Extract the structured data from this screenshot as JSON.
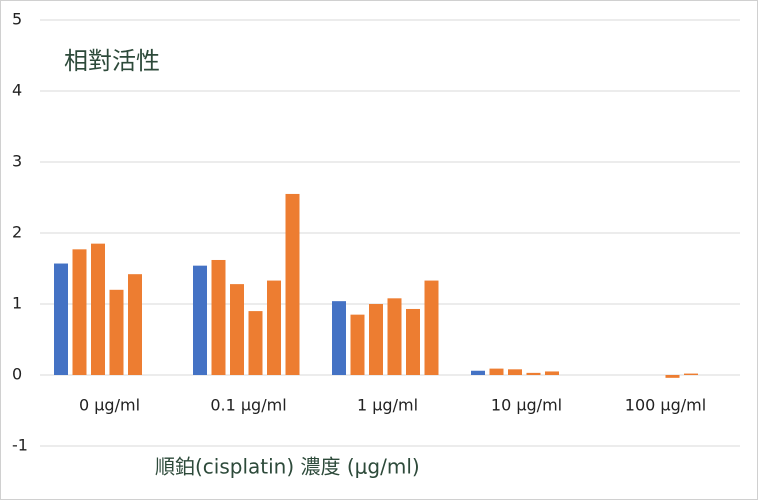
{
  "chart_data": {
    "type": "bar",
    "title": "相對活性",
    "x_label": "順鉑(cisplatin) 濃度 (μg/ml)",
    "categories": [
      "0 μg/ml",
      "0.1 μg/ml",
      "1 μg/ml",
      "10 μg/ml",
      "100 μg/ml"
    ],
    "series": [
      {
        "color": "#4472c4",
        "values": [
          1.57,
          1.54,
          1.04,
          0.06,
          null
        ]
      },
      {
        "color": "#ed7d31",
        "values": [
          1.77,
          1.62,
          0.85,
          0.09,
          null
        ]
      },
      {
        "color": "#ed7d31",
        "values": [
          1.85,
          1.28,
          1.0,
          0.08,
          null
        ]
      },
      {
        "color": "#ed7d31",
        "values": [
          1.2,
          0.9,
          1.08,
          0.03,
          -0.04
        ]
      },
      {
        "color": "#ed7d31",
        "values": [
          1.42,
          1.33,
          0.93,
          0.05,
          0.02
        ]
      },
      {
        "color": "#ed7d31",
        "values": [
          null,
          2.55,
          1.33,
          null,
          null
        ]
      }
    ],
    "ylim": [
      -1,
      5
    ],
    "yticks": [
      -1,
      0,
      1,
      2,
      3,
      4,
      5
    ],
    "grid": true
  }
}
